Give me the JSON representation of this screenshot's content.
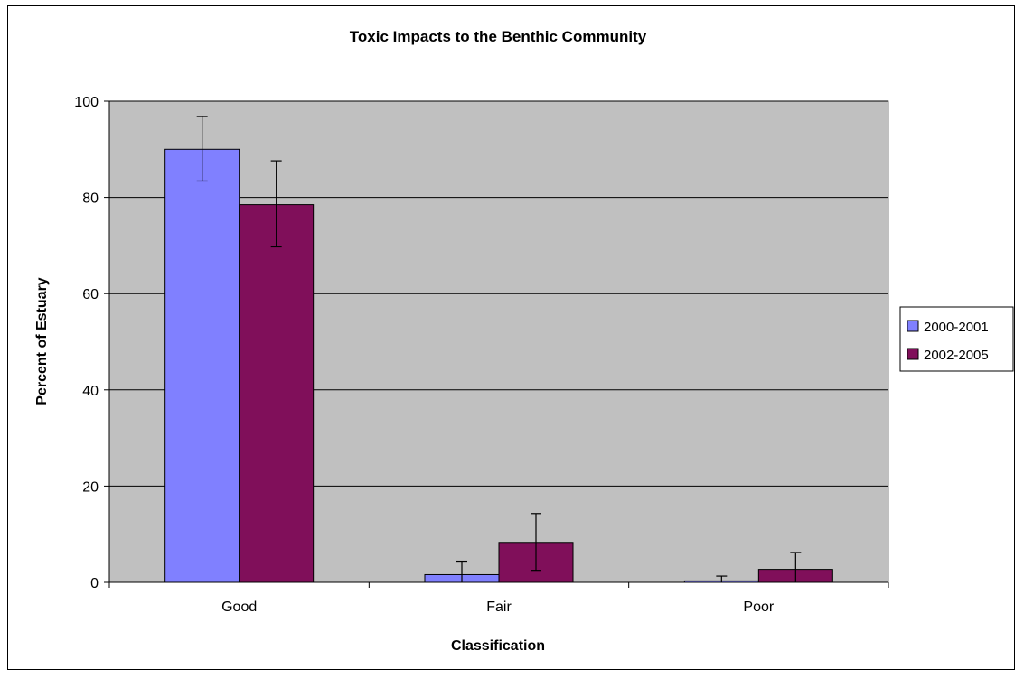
{
  "chart_data": {
    "type": "bar",
    "title": "Toxic Impacts to the Benthic Community",
    "xlabel": "Classification",
    "ylabel": "Percent of Estuary",
    "categories": [
      "Good",
      "Fair",
      "Poor"
    ],
    "ylim": [
      0,
      100
    ],
    "yticks": [
      0,
      20,
      40,
      60,
      80,
      100
    ],
    "grid": true,
    "legend_position": "right",
    "plot_background": "#c0c0c0",
    "series": [
      {
        "name": "2000-2001",
        "color": "#8080ff",
        "values": [
          90.0,
          1.6,
          0.3
        ],
        "err_low": [
          83.4,
          0.0,
          0.0
        ],
        "err_high": [
          96.8,
          4.4,
          1.3
        ]
      },
      {
        "name": "2002-2005",
        "color": "#800f5a",
        "values": [
          78.5,
          8.3,
          2.7
        ],
        "err_low": [
          69.7,
          2.5,
          0.0
        ],
        "err_high": [
          87.6,
          14.3,
          6.2
        ]
      }
    ]
  }
}
